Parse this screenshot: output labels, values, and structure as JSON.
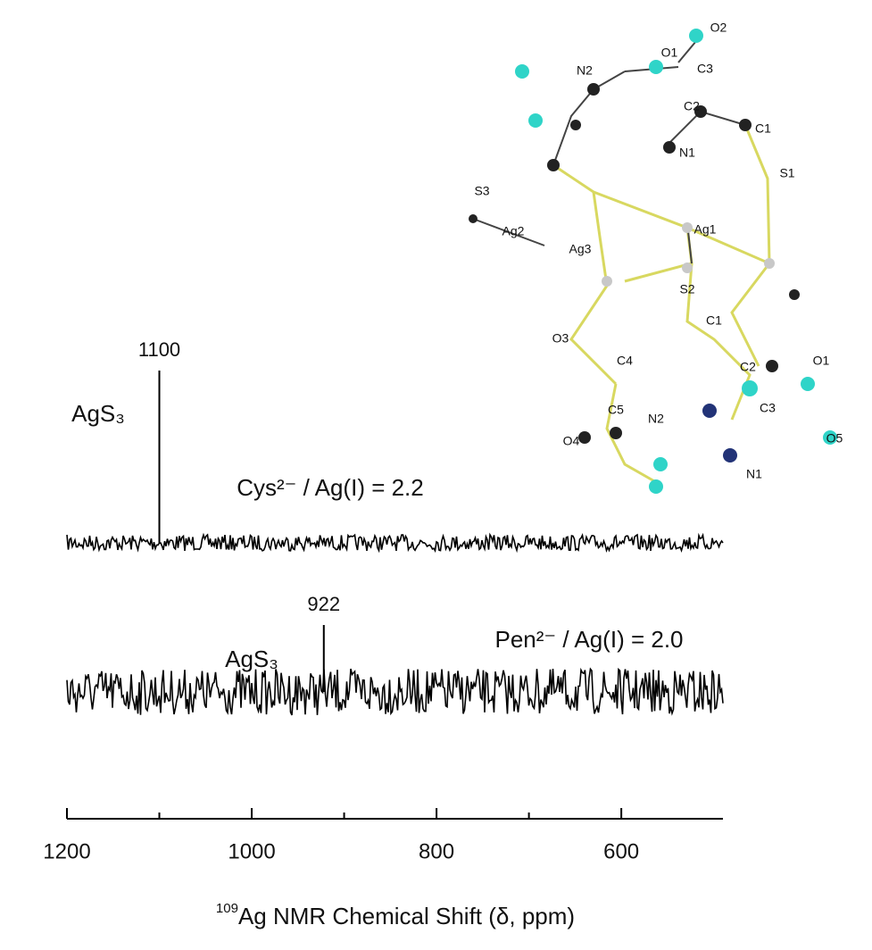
{
  "chart_data": {
    "type": "spectrum",
    "x_label_superscript": "109",
    "x_label": "Ag NMR Chemical Shift (δ, ppm)",
    "xlim": [
      1200,
      490
    ],
    "xticks": [
      1200,
      1000,
      800,
      600
    ],
    "xminorticks": [
      1100,
      900,
      700
    ],
    "series": [
      {
        "name": "Cys²⁻ / Ag(I) = 2.2",
        "species": "AgS₃",
        "peak": 1100,
        "color": "#000000"
      },
      {
        "name": "Pen²⁻ / Ag(I) = 2.0",
        "species": "AgS₃",
        "peak": 922,
        "color": "#000000"
      }
    ],
    "inset_atoms": [
      "O2",
      "O1",
      "C3",
      "N2",
      "C2",
      "C1",
      "N1",
      "S1",
      "S3",
      "Ag1",
      "Ag2",
      "Ag3",
      "S2",
      "C1",
      "C2",
      "O1",
      "N2",
      "O3",
      "C3",
      "C4",
      "C5",
      "N1",
      "O4",
      "O5"
    ]
  }
}
